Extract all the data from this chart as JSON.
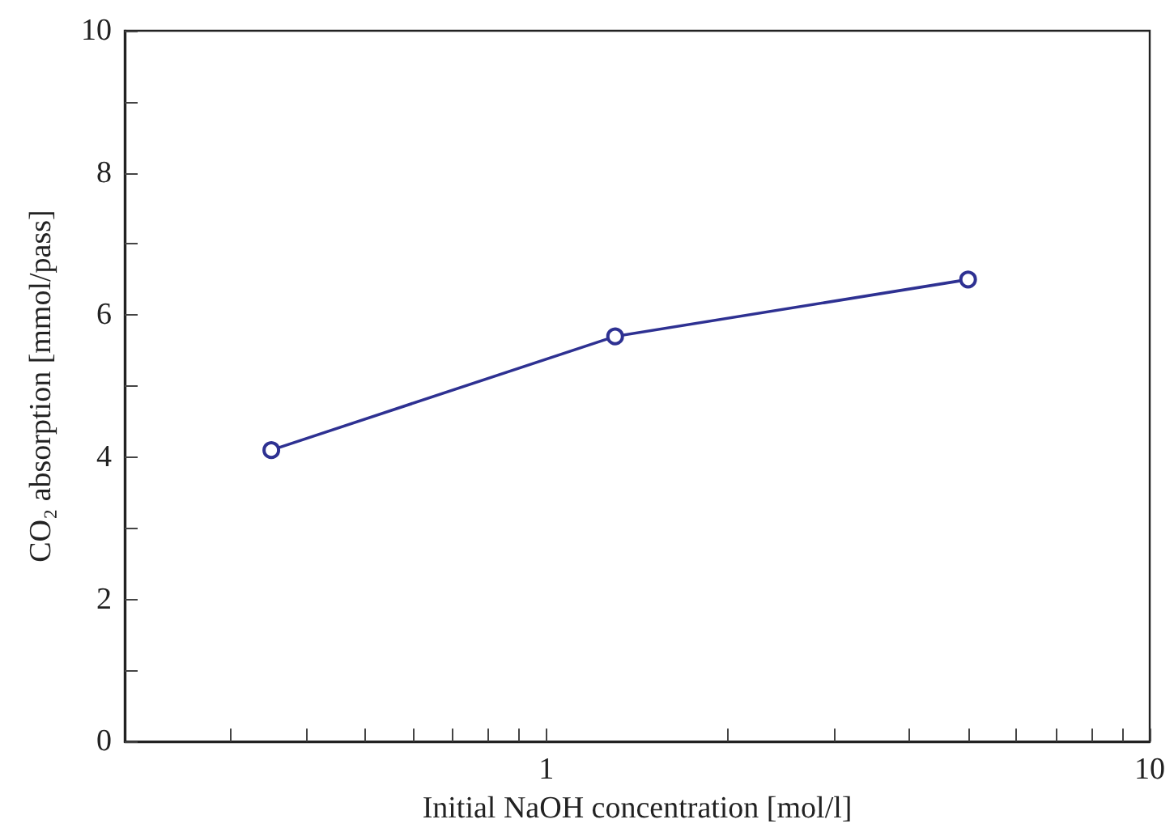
{
  "chart_data": {
    "type": "line",
    "xlabel": "Initial NaOH concentration [mol/l]",
    "ylabel": "CO₂ absorption [mmol/pass]",
    "x": [
      0.35,
      1.3,
      5
    ],
    "series": [
      {
        "color": "#2e3192",
        "values": [
          4.1,
          5.7,
          6.5
        ]
      }
    ],
    "log": "x",
    "xlim": [
      0.2,
      10
    ],
    "xticks": [
      {
        "value": 0.3,
        "label": null
      },
      {
        "value": 0.4,
        "label": null
      },
      {
        "value": 0.5,
        "label": null
      },
      {
        "value": 0.6,
        "label": null
      },
      {
        "value": 0.7,
        "label": null
      },
      {
        "value": 0.8,
        "label": null
      },
      {
        "value": 0.9,
        "label": null
      },
      1,
      {
        "value": 2,
        "label": null
      },
      {
        "value": 3,
        "label": null
      },
      {
        "value": 4,
        "label": null
      },
      {
        "value": 5,
        "label": null
      },
      {
        "value": 6,
        "label": null
      },
      {
        "value": 7,
        "label": null
      },
      {
        "value": 8,
        "label": null
      },
      {
        "value": 9,
        "label": null
      },
      10
    ],
    "ylim": [
      0,
      10
    ],
    "yticks": [
      0,
      {
        "value": 1,
        "label": null
      },
      2,
      {
        "value": 3,
        "label": null
      },
      4,
      {
        "value": 5,
        "label": null
      },
      6,
      {
        "value": 7,
        "label": null
      },
      8,
      {
        "value": 9,
        "label": null
      },
      10
    ],
    "grid": false,
    "marker": "circle",
    "line_style": "solid"
  }
}
